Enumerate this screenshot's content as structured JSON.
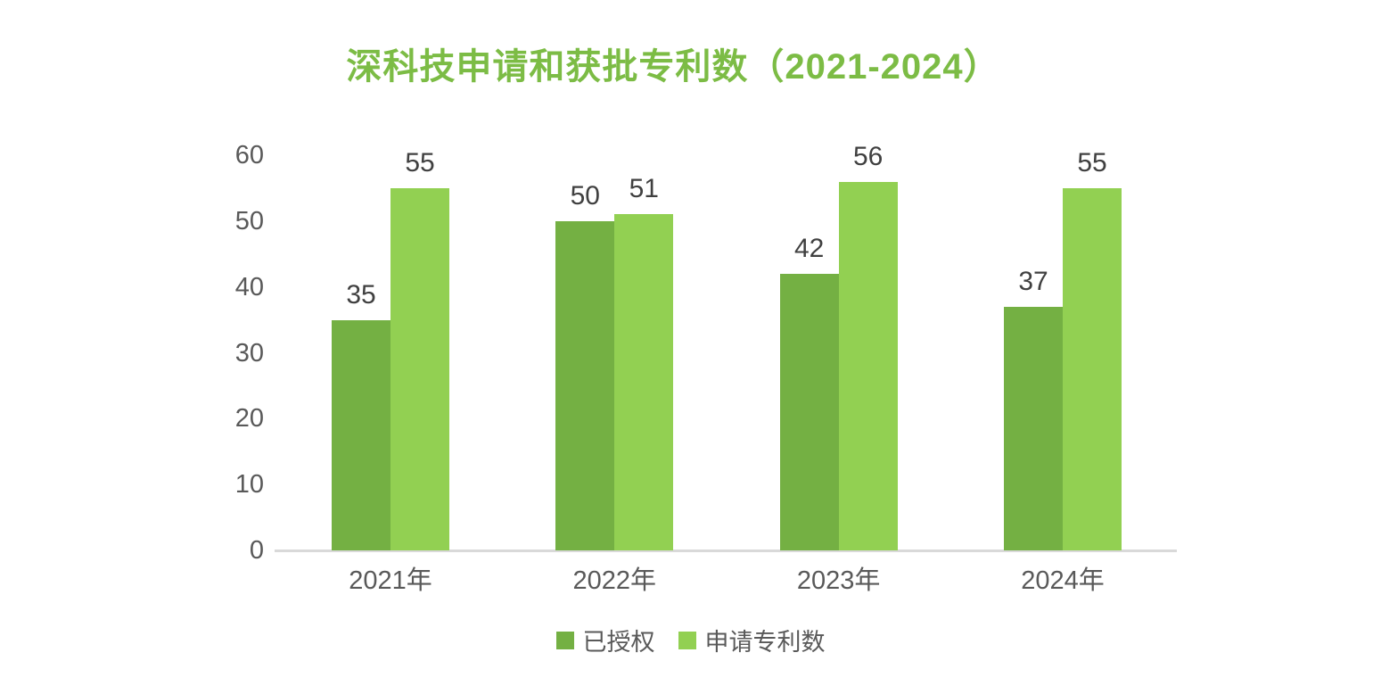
{
  "chart_data": {
    "type": "bar",
    "title": "深科技申请和获批专利数（2021-2024）",
    "categories": [
      "2021年",
      "2022年",
      "2023年",
      "2024年"
    ],
    "series": [
      {
        "name": "已授权",
        "color": "#74B043",
        "values": [
          35,
          50,
          42,
          37
        ]
      },
      {
        "name": "申请专利数",
        "color": "#92D052",
        "values": [
          55,
          51,
          56,
          55
        ]
      }
    ],
    "y_ticks": [
      0,
      10,
      20,
      30,
      40,
      50,
      60
    ],
    "ylim": [
      0,
      60
    ],
    "xlabel": "",
    "ylabel": "",
    "grid": false,
    "legend_position": "bottom",
    "data_labels": true
  },
  "colors": {
    "title": "#7CBC45",
    "series_dark": "#74B043",
    "series_light": "#92D052",
    "value_label": "#404040",
    "axis_text": "#595959",
    "axis_line": "#D9D9D9",
    "background": "#FFFFFF"
  }
}
